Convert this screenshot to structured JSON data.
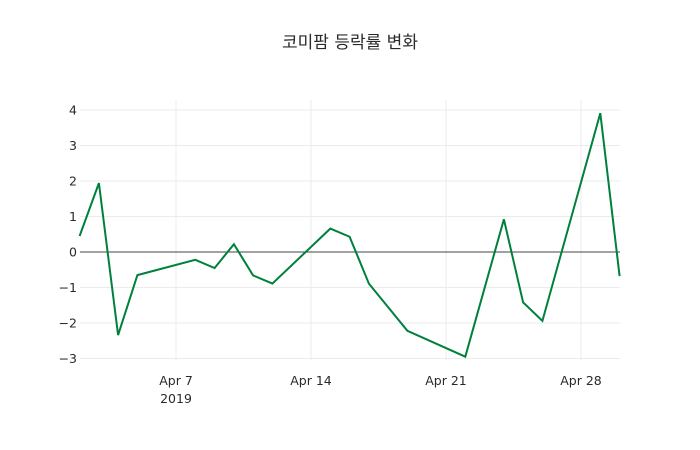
{
  "chart_data": {
    "type": "line",
    "title": "코미팜 등락률 변화",
    "xlabel": "",
    "ylabel": "",
    "x": [
      "2019-04-02",
      "2019-04-03",
      "2019-04-04",
      "2019-04-05",
      "2019-04-08",
      "2019-04-09",
      "2019-04-10",
      "2019-04-11",
      "2019-04-12",
      "2019-04-15",
      "2019-04-16",
      "2019-04-17",
      "2019-04-19",
      "2019-04-22",
      "2019-04-24",
      "2019-04-25",
      "2019-04-26",
      "2019-04-29",
      "2019-04-30"
    ],
    "series": [
      {
        "name": "등락률",
        "color": "#00803d",
        "values": [
          0.45,
          1.94,
          -2.34,
          -0.65,
          -0.22,
          -0.45,
          0.22,
          -0.66,
          -0.89,
          0.66,
          0.43,
          -0.89,
          -2.22,
          -2.95,
          0.92,
          -1.42,
          -1.94,
          3.91,
          -0.68
        ]
      }
    ],
    "ylim": [
      -3.1,
      4.3
    ],
    "yticks": [
      4,
      3,
      2,
      1,
      0,
      -1,
      -2,
      -3
    ],
    "ytick_labels": [
      "4",
      "3",
      "2",
      "1",
      "0",
      "−1",
      "−2",
      "−3"
    ],
    "xticks": [
      "2019-04-07",
      "2019-04-14",
      "2019-04-21",
      "2019-04-28"
    ],
    "xtick_labels": [
      "Apr 7",
      "Apr 14",
      "Apr 21",
      "Apr 28"
    ],
    "xtick_sublabel": "2019",
    "grid": true,
    "zeroline": true,
    "legend": "none"
  }
}
